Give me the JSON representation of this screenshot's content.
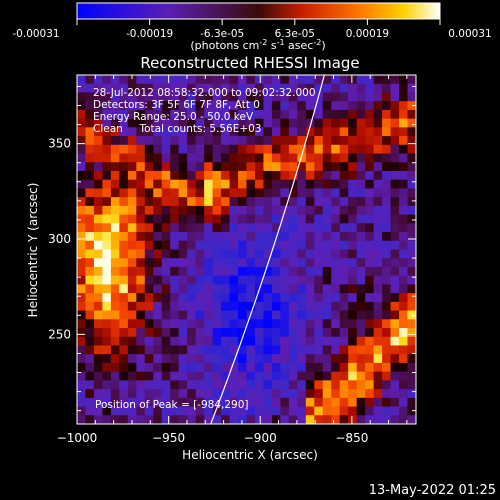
{
  "chart_data": {
    "type": "heatmap",
    "title": "Reconstructed RHESSI Image",
    "xlabel": "Heliocentric X (arcsec)",
    "ylabel": "Heliocentric Y (arcsec)",
    "xlim": [
      -1000,
      -815
    ],
    "ylim": [
      203,
      386
    ],
    "x_ticks": [
      -1000,
      -950,
      -900,
      -850
    ],
    "y_ticks": [
      250,
      300,
      350
    ],
    "colorbar": {
      "ticks": [
        "-0.00031",
        "-0.00019",
        "-6.3e-05",
        "6.3e-05",
        "0.00019",
        "0.00031"
      ],
      "label": "(photons cm",
      "label_exp1": "-2",
      "label_mid": " s",
      "label_exp2": "-1",
      "label_mid2": " asec",
      "label_exp3": "-2",
      "label_end": ")",
      "vmin": -0.00031,
      "vmax": 0.00031,
      "colormap": "blue-purple-red-orange-yellow-white"
    },
    "annotations": {
      "time_range": "28-Jul-2012 08:58:32.000 to 09:02:32.000",
      "detectors": "Detectors: 3F 5F 6F 7F 8F, Att 0",
      "energy_range": "Energy Range: 25.0 - 50.0 keV",
      "clean_line": "Clean     Total counts: 5.56E+03",
      "peak_position": "Position of Peak = [-984,290]"
    },
    "limb_curve": {
      "x_top": -865,
      "x_bottom": -927
    },
    "footer_date": "13-May-2022 01:25"
  }
}
